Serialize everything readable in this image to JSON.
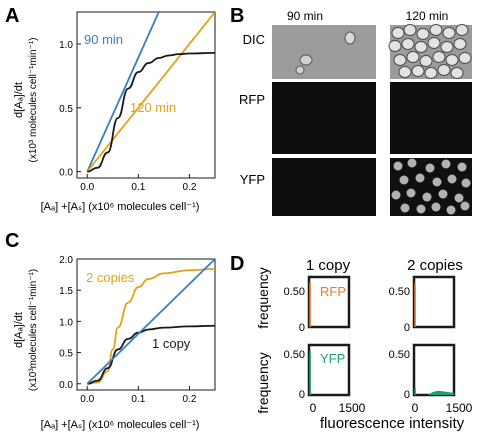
{
  "panels": {
    "A": {
      "letter": "A"
    },
    "B": {
      "letter": "B"
    },
    "C": {
      "letter": "C"
    },
    "D": {
      "letter": "D"
    }
  },
  "colors": {
    "blue": "#3a7ebf",
    "orange": "#e0a21c",
    "black": "#1a1a1a",
    "rfp": "#e87a2d",
    "yfp": "#1f9e70"
  },
  "panelA": {
    "ylabel_line1": "d[Aₐ]/dt",
    "ylabel_line2": "(x10³ molecules cell⁻¹min⁻¹)",
    "xlabel": "[Aₐ] +[Aₛ] (x10⁶ molecules cell⁻¹)",
    "label_90": "90 min",
    "label_120": "120 min"
  },
  "panelB": {
    "col1": "90 min",
    "col2": "120 min",
    "rows": [
      "DIC",
      "RFP",
      "YFP"
    ]
  },
  "panelC": {
    "ylabel_line1": "d[Aₐ]/dt",
    "ylabel_line2": "(x10³molecules cell⁻¹min⁻¹)",
    "xlabel": "[Aₐ] +[Aₛ] (x10⁶ molecules cell⁻¹)",
    "label_2copies": "2 copies",
    "label_1copy": "1 copy"
  },
  "panelD": {
    "col1": "1 copy",
    "col2": "2 copies",
    "ylabel": "frequency",
    "xlabel": "fluorescence intensity",
    "rfp": "RFP",
    "yfp": "YFP",
    "xticks": [
      "0",
      "1500"
    ],
    "yticks": [
      "0.50",
      "0"
    ]
  },
  "chart_data": [
    {
      "panel": "A",
      "type": "line",
      "xlabel": "[Aₐ] +[Aₛ] (x10⁶ molecules cell⁻¹)",
      "ylabel": "d[Aₐ]/dt (x10³ molecules cell⁻¹ min⁻¹)",
      "xlim": [
        -0.02,
        0.25
      ],
      "ylim": [
        -0.05,
        1.25
      ],
      "xticks": [
        "0.0",
        "0.1",
        "0.2"
      ],
      "yticks": [
        "0.0",
        "0.5",
        "1.0"
      ],
      "series": [
        {
          "name": "90 min",
          "color": "#3a7ebf",
          "x": [
            0,
            0.14
          ],
          "y": [
            0,
            1.25
          ]
        },
        {
          "name": "120 min",
          "color": "#e0a21c",
          "x": [
            0,
            0.25
          ],
          "y": [
            0,
            1.25
          ]
        },
        {
          "color": "#1a1a1a",
          "x": [
            0,
            0.02,
            0.04,
            0.06,
            0.08,
            0.1,
            0.12,
            0.14,
            0.16,
            0.18,
            0.2,
            0.25
          ],
          "y": [
            0,
            0.03,
            0.15,
            0.42,
            0.65,
            0.78,
            0.85,
            0.89,
            0.91,
            0.92,
            0.925,
            0.93
          ]
        }
      ]
    },
    {
      "panel": "C",
      "type": "line",
      "xlabel": "[Aₐ] +[Aₛ] (x10⁶ molecules cell⁻¹)",
      "ylabel": "d[Aₐ]/dt (x10³molecules cell⁻¹min⁻¹)",
      "xlim": [
        -0.02,
        0.25
      ],
      "ylim": [
        -0.1,
        2.0
      ],
      "xticks": [
        "0.0",
        "0.1",
        "0.2"
      ],
      "yticks": [
        "0.0",
        "0.5",
        "1.0",
        "1.5",
        "2.0"
      ],
      "series": [
        {
          "name": "2 copies",
          "color": "#e0a21c",
          "x": [
            0,
            0.02,
            0.04,
            0.05,
            0.06,
            0.08,
            0.1,
            0.12,
            0.15,
            0.2,
            0.25
          ],
          "y": [
            0,
            0.02,
            0.2,
            0.55,
            0.9,
            1.3,
            1.55,
            1.68,
            1.77,
            1.82,
            1.84
          ]
        },
        {
          "name": "1 copy",
          "color": "#1a1a1a",
          "x": [
            0,
            0.02,
            0.04,
            0.06,
            0.08,
            0.1,
            0.12,
            0.15,
            0.2,
            0.25
          ],
          "y": [
            0,
            0.05,
            0.25,
            0.55,
            0.72,
            0.82,
            0.87,
            0.9,
            0.92,
            0.93
          ]
        },
        {
          "color": "#3a7ebf",
          "x": [
            0,
            0.25
          ],
          "y": [
            0,
            2.0
          ]
        }
      ]
    },
    {
      "panel": "D",
      "type": "bar",
      "xlabel": "fluorescence intensity",
      "ylabel": "frequency",
      "xlim": [
        0,
        1500
      ],
      "ylim": [
        0,
        0.7
      ],
      "subplots": [
        {
          "name": "RFP",
          "copies": "1 copy",
          "color": "#e87a2d",
          "peak_x": 40,
          "peak_y": 0.62
        },
        {
          "name": "RFP",
          "copies": "2 copies",
          "color": "#e87a2d",
          "peak_x": 40,
          "peak_y": 0.62
        },
        {
          "name": "YFP",
          "copies": "1 copy",
          "color": "#1f9e70",
          "peak_x": 40,
          "peak_y": 0.62
        },
        {
          "name": "YFP",
          "copies": "2 copies",
          "color": "#1f9e70",
          "peak_x": 40,
          "peak_y": 0.1,
          "distribution": {
            "x": [
              500,
              700,
              900,
              1100,
              1300,
              1500
            ],
            "y": [
              0.0,
              0.04,
              0.06,
              0.05,
              0.04,
              0.03
            ]
          }
        }
      ]
    }
  ]
}
